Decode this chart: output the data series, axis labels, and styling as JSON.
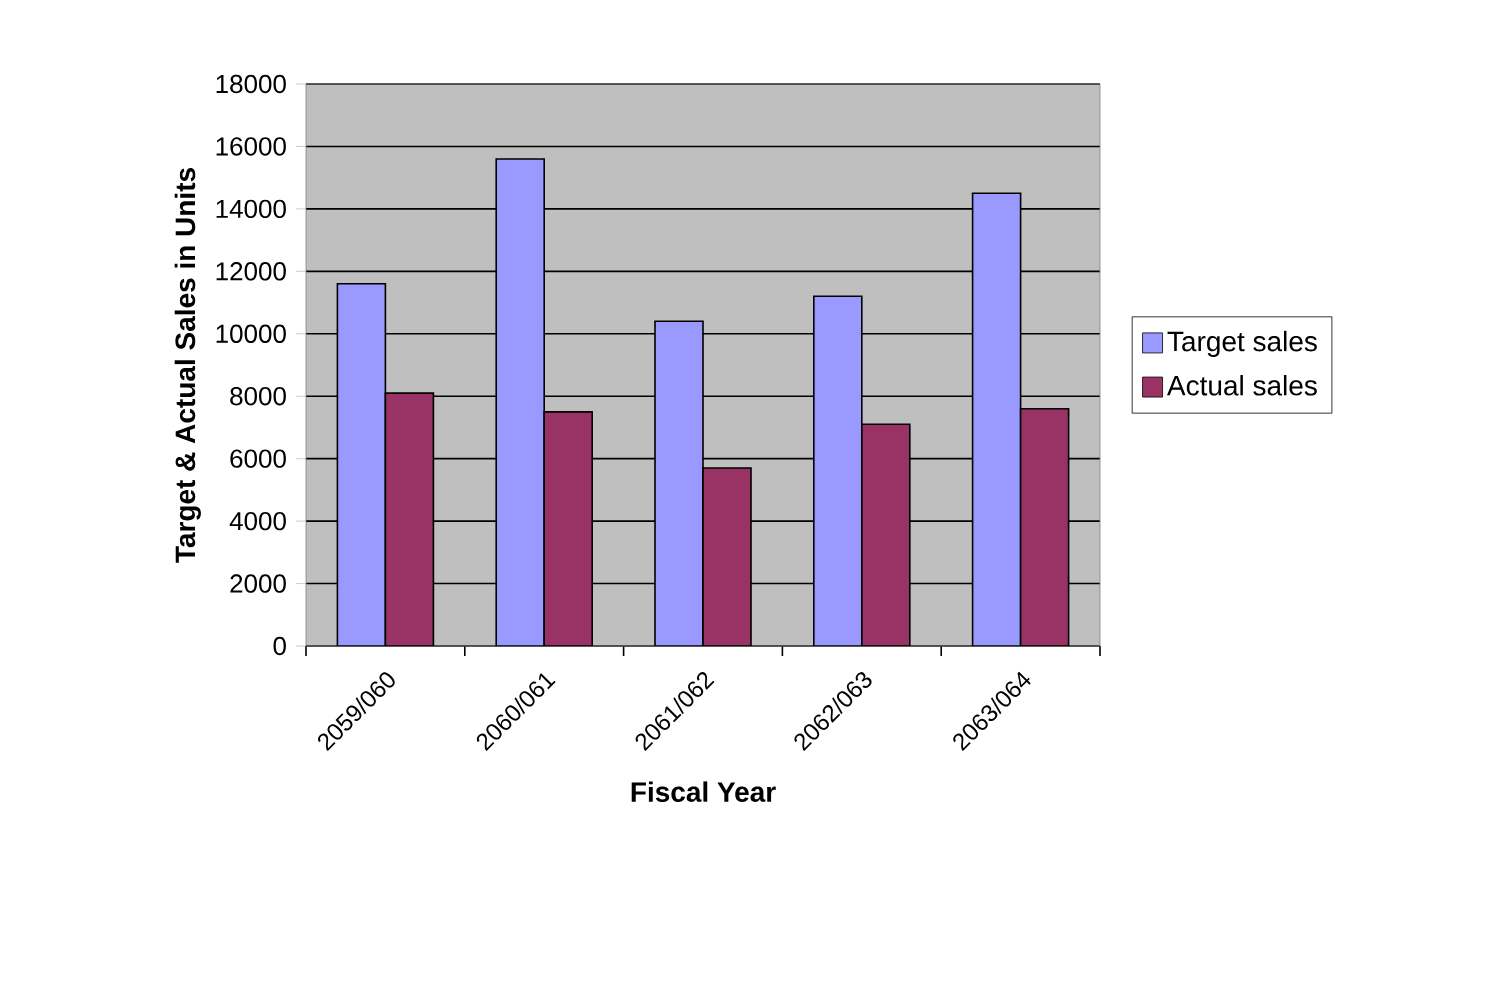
{
  "chart_data": {
    "type": "bar",
    "xlabel": "Fiscal Year",
    "ylabel": "Target & Actual Sales in Units",
    "categories": [
      "2059/060",
      "2060/061",
      "2061/062",
      "2062/063",
      "2063/064"
    ],
    "series": [
      {
        "name": "Target sales",
        "color": "#9999ff",
        "values": [
          11600,
          15600,
          10400,
          11200,
          14500
        ]
      },
      {
        "name": "Actual sales",
        "color": "#993366",
        "values": [
          8100,
          7500,
          5700,
          7100,
          7600
        ]
      }
    ],
    "ylim": [
      0,
      18000
    ],
    "yticks": [
      0,
      2000,
      4000,
      6000,
      8000,
      10000,
      12000,
      14000,
      16000,
      18000
    ],
    "grid": "y",
    "legend": "right"
  }
}
